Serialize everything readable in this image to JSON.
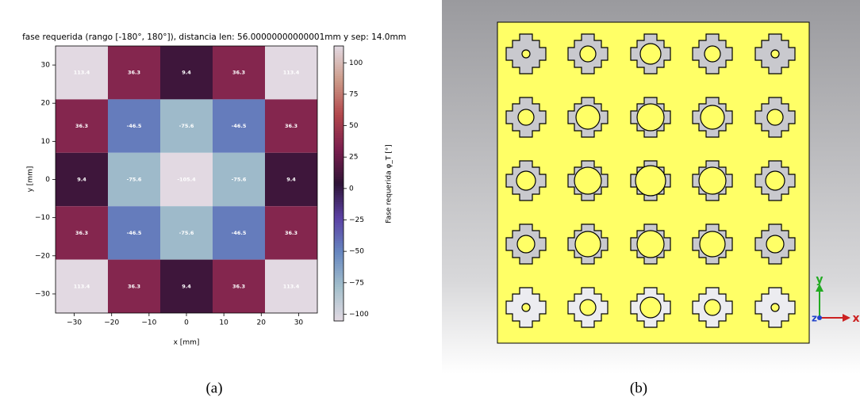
{
  "chart_data": {
    "type": "heatmap",
    "title": "fase requerida (rango [-180°, 180°]), distancia len: 56.00000000000001mm y sep: 14.0mm",
    "x_label": "x [mm]",
    "y_label": "y [mm]",
    "x": [
      -28,
      -14,
      0,
      14,
      28
    ],
    "y": [
      28,
      14,
      0,
      -14,
      -28
    ],
    "z": [
      [
        113.4,
        36.3,
        9.4,
        36.3,
        113.4
      ],
      [
        36.3,
        -46.5,
        -75.6,
        -46.5,
        36.3
      ],
      [
        9.4,
        -75.6,
        -105.4,
        -75.6,
        9.4
      ],
      [
        36.3,
        -46.5,
        -75.6,
        -46.5,
        36.3
      ],
      [
        113.4,
        36.3,
        9.4,
        36.3,
        113.4
      ]
    ],
    "xlim": [
      -35,
      35
    ],
    "ylim": [
      -35,
      35
    ],
    "xticks": [
      {
        "value": -30,
        "label": "−30"
      },
      {
        "value": -20,
        "label": "−20"
      },
      {
        "value": -10,
        "label": "−10"
      },
      0,
      10,
      20,
      30
    ],
    "yticks": [
      {
        "value": -30,
        "label": "−30"
      },
      {
        "value": -20,
        "label": "−20"
      },
      {
        "value": -10,
        "label": "−10"
      },
      0,
      10,
      20,
      30
    ],
    "colorbar": {
      "label": "Fase requerida φ_T [°]",
      "lim": [
        -105.4,
        113.4
      ],
      "ticks": [
        {
          "value": -100,
          "label": "−100"
        },
        {
          "value": -75,
          "label": "−75"
        },
        {
          "value": -50,
          "label": "−50"
        },
        {
          "value": -25,
          "label": "−25"
        },
        0,
        25,
        50,
        75,
        100
      ],
      "colors": [
        "#e2d9e2",
        "#a3bfcb",
        "#6787c0",
        "#5b41a4",
        "#2f1436",
        "#7a1f4e",
        "#b2474c",
        "#cc9a88",
        "#e2d9e2"
      ]
    },
    "label_color": "#ffffff"
  },
  "captions": [
    "(a)",
    "(b)"
  ],
  "cad_view": {
    "axes": {
      "x": "x",
      "y": "y",
      "z": "z"
    }
  }
}
